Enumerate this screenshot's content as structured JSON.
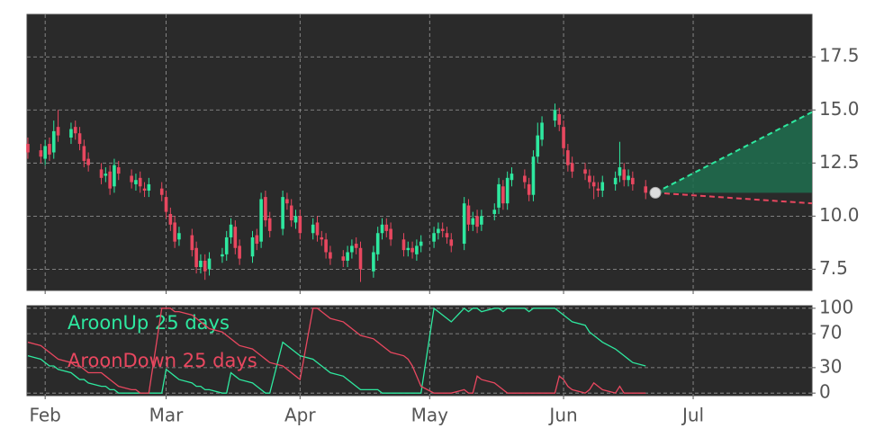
{
  "chart_data": [
    {
      "type": "candlestick",
      "x": [
        28,
        31,
        32,
        33,
        34,
        35,
        38,
        39,
        40,
        41,
        42,
        45,
        46,
        47,
        48,
        49,
        52,
        53,
        54,
        55,
        56,
        59,
        60,
        61,
        62,
        63,
        66,
        67,
        68,
        69,
        70,
        73,
        74,
        75,
        76,
        77,
        80,
        81,
        82,
        83,
        84,
        87,
        88,
        89,
        90,
        91,
        94,
        95,
        96,
        97,
        98,
        101,
        102,
        103,
        104,
        105,
        108,
        109,
        110,
        111,
        112,
        115,
        116,
        117,
        118,
        119,
        122,
        123,
        124,
        125,
        126,
        129,
        130,
        131,
        132,
        133,
        136,
        137,
        138,
        139,
        140,
        143,
        144,
        145,
        146,
        147,
        150,
        151,
        152,
        153,
        154,
        157,
        158,
        159,
        160,
        161,
        164,
        165,
        166,
        167,
        168,
        171
      ],
      "open": [
        13.4,
        13.1,
        12.7,
        13.4,
        13.0,
        14.2,
        13.7,
        14.2,
        13.9,
        13.3,
        12.7,
        12.2,
        11.9,
        12.1,
        11.4,
        12.3,
        11.9,
        11.5,
        11.8,
        11.3,
        11.2,
        11.3,
        10.9,
        10.1,
        9.7,
        8.9,
        9.1,
        8.5,
        7.6,
        7.9,
        7.5,
        8.1,
        8.2,
        9.0,
        9.5,
        8.6,
        8.1,
        9.1,
        8.8,
        10.9,
        9.9,
        9.4,
        10.8,
        10.5,
        9.7,
        10.0,
        9.2,
        9.7,
        9.0,
        8.9,
        8.3,
        8.1,
        7.9,
        8.3,
        8.7,
        8.5,
        7.4,
        8.2,
        9.2,
        9.6,
        9.4,
        8.9,
        8.4,
        8.5,
        8.2,
        8.6,
        8.8,
        9.2,
        9.4,
        9.2,
        8.9,
        8.7,
        10.5,
        9.6,
        10.0,
        9.6,
        10.1,
        10.4,
        11.4,
        10.6,
        11.7,
        11.9,
        11.5,
        11.0,
        12.8,
        13.6,
        14.5,
        14.8,
        14.2,
        13.1,
        12.5,
        12.2,
        11.9,
        11.6,
        11.3,
        11.2,
        11.5,
        11.9,
        12.2,
        11.7,
        11.8,
        11.4
      ],
      "high": [
        13.7,
        13.4,
        13.6,
        13.7,
        14.5,
        15.0,
        14.4,
        14.5,
        14.2,
        13.6,
        13.0,
        12.5,
        12.3,
        12.4,
        12.7,
        12.6,
        12.2,
        12.0,
        12.1,
        11.6,
        11.8,
        11.6,
        11.2,
        10.4,
        10.0,
        9.5,
        9.4,
        8.8,
        8.2,
        8.2,
        8.3,
        8.5,
        9.3,
        9.9,
        9.8,
        8.9,
        9.3,
        9.4,
        11.1,
        11.2,
        10.2,
        11.2,
        11.1,
        10.8,
        10.3,
        10.3,
        9.9,
        10.0,
        9.3,
        9.2,
        8.6,
        8.4,
        8.6,
        8.9,
        9.0,
        8.8,
        8.6,
        9.5,
        9.9,
        9.9,
        9.7,
        9.2,
        8.8,
        8.8,
        8.9,
        9.1,
        9.5,
        9.7,
        9.7,
        9.5,
        9.2,
        10.9,
        10.8,
        10.2,
        10.3,
        10.3,
        10.6,
        11.8,
        11.7,
        12.1,
        12.3,
        12.2,
        11.8,
        13.1,
        14.4,
        14.7,
        15.3,
        15.1,
        14.5,
        13.4,
        12.8,
        12.5,
        12.2,
        11.9,
        11.6,
        11.9,
        12.1,
        13.5,
        12.5,
        12.2,
        12.1,
        11.7
      ],
      "low": [
        12.7,
        12.5,
        12.4,
        12.6,
        12.7,
        13.5,
        13.4,
        13.6,
        13.1,
        12.3,
        12.1,
        11.5,
        11.6,
        11.0,
        11.1,
        11.7,
        11.3,
        11.2,
        11.1,
        10.9,
        10.9,
        10.7,
        9.9,
        9.3,
        8.5,
        8.6,
        8.1,
        7.3,
        7.3,
        7.0,
        7.2,
        7.8,
        7.9,
        8.7,
        8.2,
        7.7,
        7.8,
        8.4,
        8.5,
        9.5,
        9.0,
        9.1,
        10.3,
        9.5,
        9.4,
        8.9,
        8.9,
        8.8,
        8.6,
        8.0,
        7.7,
        7.6,
        7.6,
        8.0,
        8.2,
        6.9,
        7.1,
        7.9,
        8.9,
        9.0,
        8.6,
        8.1,
        8.1,
        8.0,
        7.9,
        8.3,
        8.5,
        8.9,
        9.0,
        8.7,
        8.3,
        8.4,
        9.3,
        9.3,
        9.2,
        9.3,
        9.8,
        10.1,
        10.3,
        10.3,
        11.4,
        11.3,
        10.7,
        10.7,
        12.5,
        13.3,
        14.2,
        14.0,
        12.9,
        12.1,
        11.8,
        11.7,
        11.3,
        10.8,
        10.9,
        10.9,
        11.2,
        11.6,
        11.4,
        11.4,
        11.2,
        10.8
      ],
      "close": [
        13.0,
        12.8,
        13.3,
        12.9,
        14.0,
        13.8,
        14.1,
        13.9,
        13.4,
        12.6,
        12.4,
        11.8,
        12.0,
        11.3,
        12.4,
        12.0,
        11.6,
        11.7,
        11.4,
        11.2,
        11.5,
        11.0,
        10.2,
        9.6,
        8.8,
        9.2,
        8.4,
        7.6,
        7.9,
        7.4,
        8.0,
        8.2,
        9.0,
        9.6,
        8.5,
        8.0,
        9.0,
        8.7,
        10.8,
        9.8,
        9.3,
        10.9,
        10.6,
        9.8,
        10.0,
        9.2,
        9.6,
        9.1,
        8.9,
        8.3,
        8.0,
        7.9,
        8.3,
        8.6,
        8.5,
        7.5,
        8.3,
        9.2,
        9.6,
        9.3,
        8.9,
        8.4,
        8.5,
        8.3,
        8.6,
        8.8,
        9.2,
        9.4,
        9.3,
        9.0,
        8.6,
        10.6,
        9.6,
        9.9,
        9.5,
        10.0,
        10.3,
        11.5,
        10.6,
        11.8,
        12.0,
        11.6,
        11.0,
        12.8,
        13.8,
        14.4,
        15.0,
        14.3,
        13.2,
        12.4,
        12.1,
        12.0,
        11.6,
        11.4,
        11.2,
        11.6,
        11.8,
        12.3,
        11.7,
        11.9,
        11.5,
        11.1
      ],
      "up_color": "#2ee89f",
      "down_color": "#e8475f",
      "forecast": {
        "x": [
          173.25,
          209.5
        ],
        "upper": [
          11.1,
          14.9
        ],
        "lower": [
          11.1,
          10.6
        ],
        "base": [
          11.1,
          11.1
        ],
        "upper_color": "#2ee89f",
        "lower_color": "#e8475f",
        "fill": "#1f6e4f"
      },
      "xlim": [
        27.8,
        209.5
      ],
      "ylim": [
        6.5,
        19.5
      ],
      "yticks": [
        7.5,
        {
          "value": 10,
          "label": "10.0"
        },
        12.5,
        {
          "value": 15,
          "label": "15.0"
        },
        17.5
      ],
      "grid": true
    },
    {
      "type": "line",
      "x": [
        28,
        31,
        32,
        33,
        34,
        35,
        38,
        39,
        40,
        41,
        42,
        45,
        46,
        47,
        48,
        49,
        52,
        53,
        54,
        55,
        56,
        59,
        60,
        61,
        62,
        63,
        66,
        67,
        68,
        69,
        70,
        73,
        74,
        75,
        76,
        77,
        80,
        81,
        82,
        83,
        84,
        87,
        88,
        89,
        90,
        91,
        94,
        95,
        96,
        97,
        98,
        101,
        102,
        103,
        104,
        105,
        108,
        109,
        110,
        111,
        112,
        115,
        116,
        117,
        118,
        119,
        122,
        123,
        124,
        125,
        126,
        129,
        130,
        131,
        132,
        133,
        136,
        137,
        138,
        139,
        140,
        143,
        144,
        145,
        146,
        147,
        150,
        151,
        152,
        153,
        154,
        157,
        158,
        159,
        160,
        161,
        164,
        165,
        166,
        167,
        168,
        171
      ],
      "series": [
        {
          "name": "AroonUp 25 days",
          "color": "#2ee89f",
          "values": [
            44,
            40,
            36,
            32,
            32,
            28,
            24,
            20,
            16,
            16,
            12,
            8,
            8,
            4,
            4,
            0,
            0,
            0,
            0,
            0,
            0,
            0,
            28,
            24,
            20,
            16,
            12,
            8,
            8,
            4,
            4,
            0,
            0,
            24,
            20,
            16,
            12,
            8,
            4,
            0,
            0,
            60,
            56,
            52,
            48,
            44,
            40,
            36,
            32,
            28,
            24,
            20,
            16,
            12,
            8,
            4,
            4,
            4,
            0,
            0,
            0,
            0,
            0,
            0,
            0,
            0,
            100,
            96,
            92,
            88,
            84,
            100,
            96,
            100,
            100,
            96,
            100,
            100,
            96,
            100,
            100,
            100,
            96,
            100,
            100,
            100,
            100,
            96,
            92,
            88,
            84,
            80,
            72,
            68,
            64,
            60,
            52,
            48,
            44,
            40,
            36,
            32
          ]
        },
        {
          "name": "AroonDown 25 days",
          "color": "#e8475f",
          "values": [
            60,
            56,
            52,
            48,
            44,
            40,
            36,
            32,
            32,
            28,
            24,
            24,
            20,
            16,
            12,
            8,
            4,
            4,
            0,
            0,
            0,
            100,
            100,
            100,
            96,
            96,
            92,
            88,
            84,
            80,
            76,
            72,
            68,
            64,
            60,
            56,
            52,
            48,
            44,
            40,
            36,
            32,
            28,
            24,
            20,
            16,
            100,
            100,
            96,
            92,
            88,
            84,
            80,
            76,
            72,
            68,
            64,
            60,
            56,
            52,
            48,
            44,
            40,
            32,
            20,
            8,
            0,
            0,
            0,
            0,
            0,
            4,
            0,
            0,
            20,
            16,
            12,
            8,
            4,
            0,
            0,
            0,
            0,
            0,
            0,
            0,
            0,
            20,
            16,
            8,
            4,
            0,
            4,
            12,
            8,
            4,
            0,
            8,
            0,
            0,
            0,
            0
          ]
        }
      ],
      "xlim": [
        27.8,
        209.5
      ],
      "ylim": [
        -3,
        103
      ],
      "yticks": [
        0,
        30,
        70,
        100
      ],
      "xticks": [
        {
          "value": 32,
          "label": "Feb"
        },
        {
          "value": 60,
          "label": "Mar"
        },
        {
          "value": 91,
          "label": "Apr"
        },
        {
          "value": 121,
          "label": "May"
        },
        {
          "value": 152,
          "label": "Jun"
        },
        {
          "value": 182,
          "label": "Jul"
        }
      ],
      "grid": true
    }
  ]
}
